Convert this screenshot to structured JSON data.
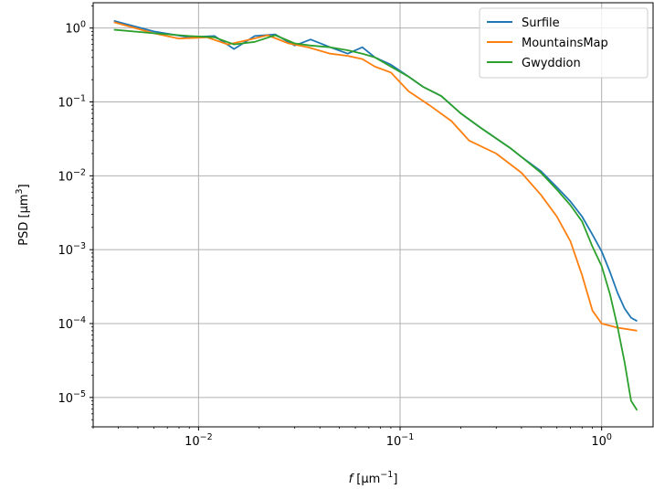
{
  "chart_data": {
    "type": "line",
    "title": "",
    "xlabel": "f [µm⁻¹]",
    "ylabel": "PSD [µm³]",
    "xscale": "log",
    "yscale": "log",
    "grid": true,
    "legend_position": "top-right",
    "xlim": [
      0.003,
      1.8
    ],
    "ylim": [
      4e-06,
      2.2
    ],
    "x_ticks": [
      {
        "value": 0.01,
        "label_base": "10",
        "label_exp": "−2"
      },
      {
        "value": 0.1,
        "label_base": "10",
        "label_exp": "−1"
      },
      {
        "value": 1,
        "label_base": "10",
        "label_exp": "0"
      }
    ],
    "y_ticks": [
      {
        "value": 1e-05,
        "label_base": "10",
        "label_exp": "−5"
      },
      {
        "value": 0.0001,
        "label_base": "10",
        "label_exp": "−4"
      },
      {
        "value": 0.001,
        "label_base": "10",
        "label_exp": "−3"
      },
      {
        "value": 0.01,
        "label_base": "10",
        "label_exp": "−2"
      },
      {
        "value": 0.1,
        "label_base": "10",
        "label_exp": "−1"
      },
      {
        "value": 1,
        "label_base": "10",
        "label_exp": "0"
      }
    ],
    "series": [
      {
        "name": "Surfile",
        "color": "#1f77b4",
        "points": [
          [
            0.0038,
            1.25
          ],
          [
            0.006,
            0.9
          ],
          [
            0.009,
            0.75
          ],
          [
            0.012,
            0.78
          ],
          [
            0.015,
            0.52
          ],
          [
            0.019,
            0.78
          ],
          [
            0.024,
            0.82
          ],
          [
            0.03,
            0.58
          ],
          [
            0.036,
            0.7
          ],
          [
            0.045,
            0.55
          ],
          [
            0.055,
            0.45
          ],
          [
            0.065,
            0.55
          ],
          [
            0.075,
            0.4
          ],
          [
            0.09,
            0.32
          ],
          [
            0.11,
            0.22
          ],
          [
            0.13,
            0.16
          ],
          [
            0.16,
            0.12
          ],
          [
            0.2,
            0.07
          ],
          [
            0.25,
            0.045
          ],
          [
            0.3,
            0.032
          ],
          [
            0.35,
            0.024
          ],
          [
            0.4,
            0.018
          ],
          [
            0.5,
            0.0115
          ],
          [
            0.6,
            0.007
          ],
          [
            0.7,
            0.0045
          ],
          [
            0.8,
            0.0028
          ],
          [
            0.9,
            0.0016
          ],
          [
            1.0,
            0.00095
          ],
          [
            1.1,
            0.0005
          ],
          [
            1.2,
            0.00026
          ],
          [
            1.3,
            0.00016
          ],
          [
            1.4,
            0.00012
          ],
          [
            1.5,
            0.000108
          ]
        ]
      },
      {
        "name": "MountainsMap",
        "color": "#ff7f0e",
        "points": [
          [
            0.0038,
            1.2
          ],
          [
            0.006,
            0.85
          ],
          [
            0.008,
            0.72
          ],
          [
            0.011,
            0.75
          ],
          [
            0.014,
            0.6
          ],
          [
            0.018,
            0.7
          ],
          [
            0.022,
            0.8
          ],
          [
            0.028,
            0.62
          ],
          [
            0.035,
            0.55
          ],
          [
            0.045,
            0.45
          ],
          [
            0.055,
            0.42
          ],
          [
            0.065,
            0.38
          ],
          [
            0.075,
            0.3
          ],
          [
            0.09,
            0.25
          ],
          [
            0.11,
            0.14
          ],
          [
            0.14,
            0.09
          ],
          [
            0.18,
            0.055
          ],
          [
            0.22,
            0.03
          ],
          [
            0.3,
            0.02
          ],
          [
            0.4,
            0.011
          ],
          [
            0.5,
            0.0055
          ],
          [
            0.6,
            0.0028
          ],
          [
            0.7,
            0.0013
          ],
          [
            0.8,
            0.00045
          ],
          [
            0.9,
            0.00015
          ],
          [
            1.0,
            0.0001
          ],
          [
            1.2,
            8.8e-05
          ],
          [
            1.5,
            8e-05
          ]
        ]
      },
      {
        "name": "Gwyddion",
        "color": "#2ca02c",
        "points": [
          [
            0.0038,
            0.95
          ],
          [
            0.006,
            0.85
          ],
          [
            0.009,
            0.78
          ],
          [
            0.012,
            0.75
          ],
          [
            0.015,
            0.6
          ],
          [
            0.019,
            0.65
          ],
          [
            0.024,
            0.8
          ],
          [
            0.03,
            0.62
          ],
          [
            0.036,
            0.58
          ],
          [
            0.045,
            0.55
          ],
          [
            0.055,
            0.5
          ],
          [
            0.065,
            0.45
          ],
          [
            0.075,
            0.4
          ],
          [
            0.09,
            0.3
          ],
          [
            0.11,
            0.22
          ],
          [
            0.13,
            0.16
          ],
          [
            0.16,
            0.12
          ],
          [
            0.2,
            0.07
          ],
          [
            0.25,
            0.045
          ],
          [
            0.3,
            0.032
          ],
          [
            0.35,
            0.024
          ],
          [
            0.4,
            0.018
          ],
          [
            0.5,
            0.011
          ],
          [
            0.6,
            0.0065
          ],
          [
            0.7,
            0.004
          ],
          [
            0.8,
            0.0024
          ],
          [
            0.9,
            0.0011
          ],
          [
            1.0,
            0.0006
          ],
          [
            1.1,
            0.00025
          ],
          [
            1.2,
            9e-05
          ],
          [
            1.3,
            3e-05
          ],
          [
            1.4,
            9e-06
          ],
          [
            1.5,
            6.7e-06
          ]
        ]
      }
    ]
  }
}
